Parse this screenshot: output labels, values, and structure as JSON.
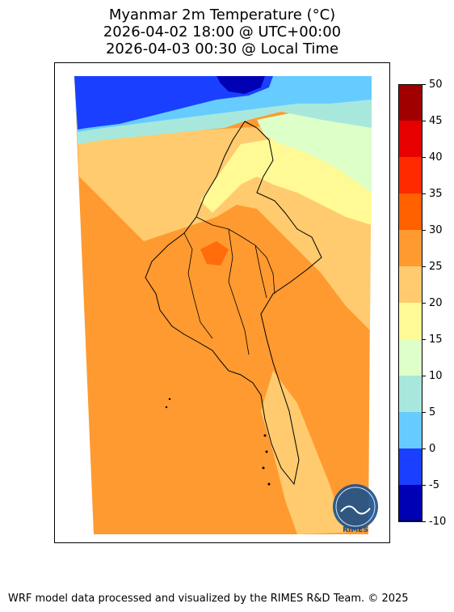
{
  "title": {
    "line1": "Myanmar 2m Temperature (°C)",
    "line2": "2026-04-02 18:00 @ UTC+00:00",
    "line3": "2026-04-03 00:30 @ Local Time"
  },
  "colorbar": {
    "ticks": [
      "50",
      "45",
      "40",
      "35",
      "30",
      "25",
      "20",
      "15",
      "10",
      "5",
      "0",
      "-5",
      "-10"
    ],
    "colors": [
      "#a00000",
      "#e60000",
      "#ff2a00",
      "#ff6000",
      "#ff9a30",
      "#ffcb6e",
      "#fffa96",
      "#ddffc8",
      "#a8e8dc",
      "#66ccff",
      "#1a3fff",
      "#0000b4"
    ]
  },
  "logo": {
    "text": "RIMES"
  },
  "footer": "WRF model data processed and visualized by the RIMES R&D Team. © 2025"
}
